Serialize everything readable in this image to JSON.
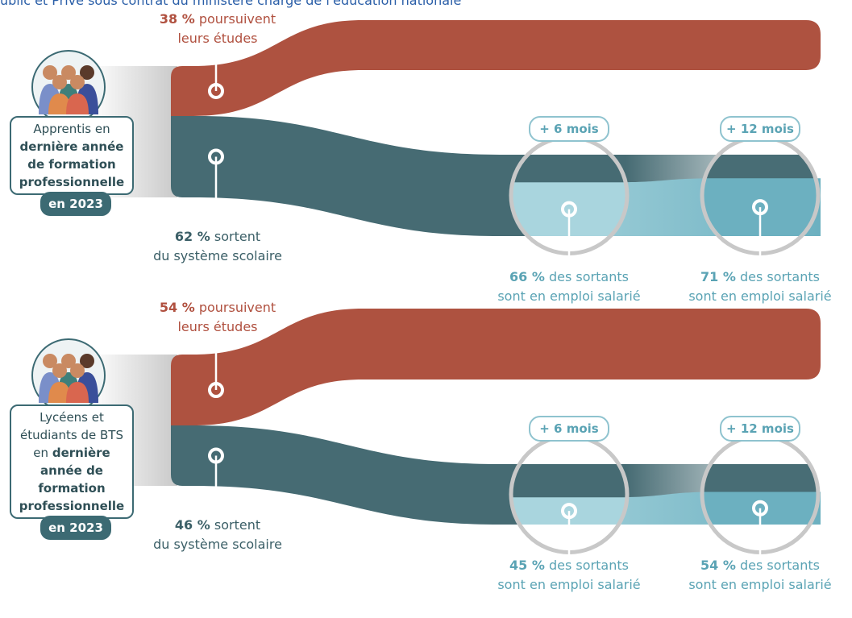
{
  "header": {
    "subtitle": "ublic et Privé sous contrat du ministère chargé de l'éducation nationale"
  },
  "panels": [
    {
      "group": {
        "line_plain": "Apprentis en",
        "line_bold": "dernière année de formation professionnelle",
        "year": "en 2023"
      },
      "continue": {
        "value": 38,
        "label": "38 %",
        "text": "poursuivent",
        "text2": "leurs études"
      },
      "leave": {
        "value": 62,
        "label": "62 %",
        "text": "sortent",
        "text2": "du système scolaire"
      },
      "employment": [
        {
          "period": "+ 6 mois",
          "value": 66,
          "label": "66 %",
          "text": "des sortants",
          "text2": "sont en emploi salarié"
        },
        {
          "period": "+ 12 mois",
          "value": 71,
          "label": "71 %",
          "text": "des sortants",
          "text2": "sont en emploi salarié"
        }
      ]
    },
    {
      "group": {
        "line_plain": "Lycéens et étudiants de BTS en",
        "line_bold": "dernière année de formation professionnelle",
        "year": "en 2023"
      },
      "continue": {
        "value": 54,
        "label": "54 %",
        "text": "poursuivent",
        "text2": "leurs études"
      },
      "leave": {
        "value": 46,
        "label": "46 %",
        "text": "sortent",
        "text2": "du système scolaire"
      },
      "employment": [
        {
          "period": "+ 6 mois",
          "value": 45,
          "label": "45 %",
          "text": "des sortants",
          "text2": "sont en emploi salarié"
        },
        {
          "period": "+ 12 mois",
          "value": 54,
          "label": "54 %",
          "text": "des sortants",
          "text2": "sont en emploi salarié"
        }
      ]
    }
  ]
}
